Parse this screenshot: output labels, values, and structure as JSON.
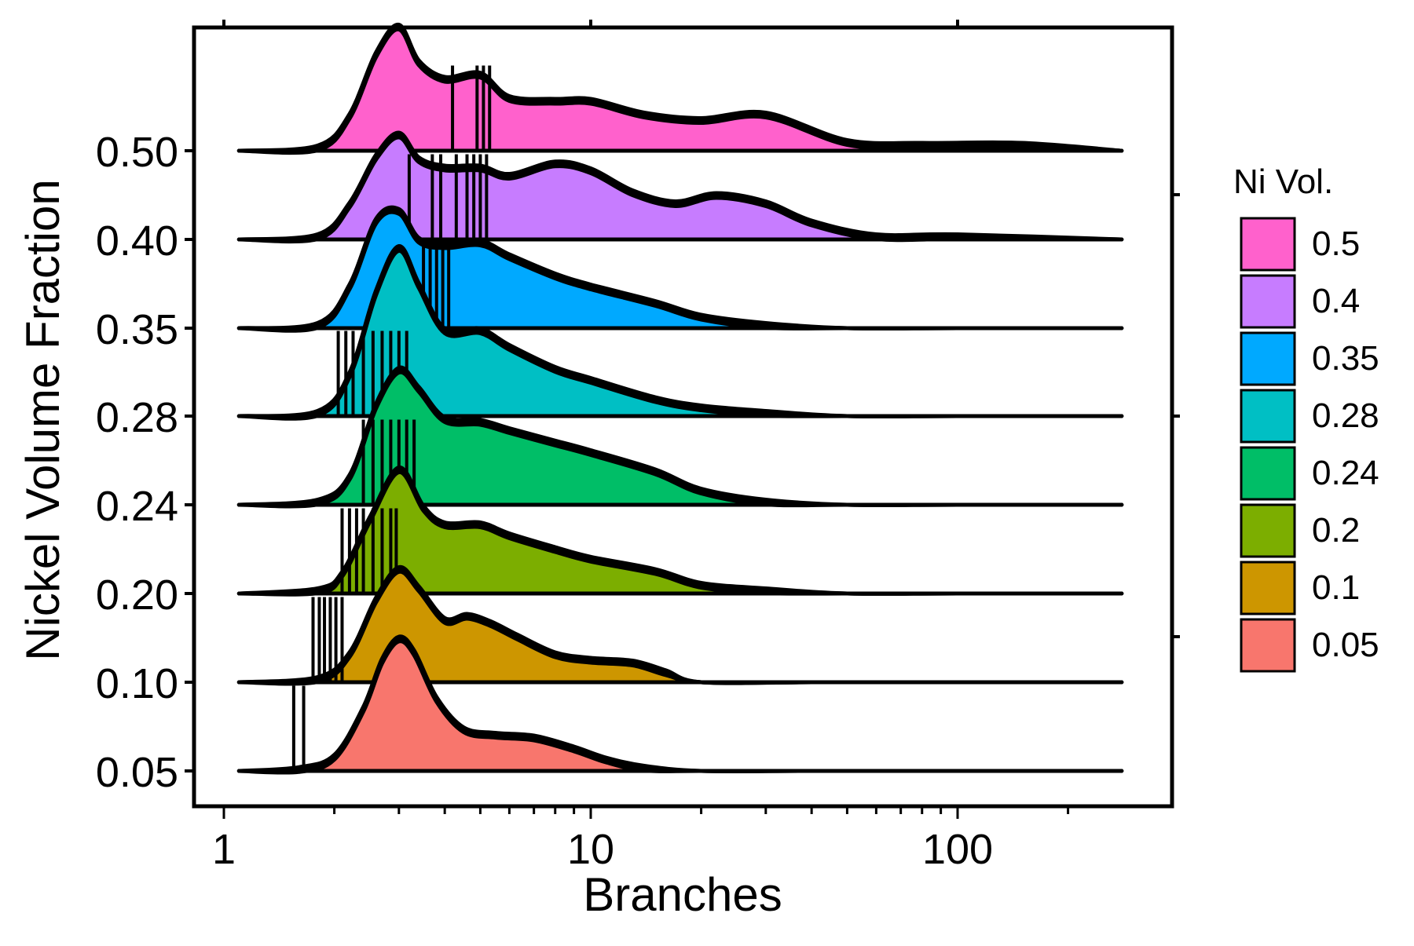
{
  "chart_data": {
    "type": "area",
    "subtype": "ridgeline-density",
    "title": "",
    "xlabel": "Branches",
    "ylabel": "Nickel Volume Fraction",
    "x_scale": "log10",
    "xlim": [
      1,
      280
    ],
    "x_ticks": [
      "1",
      "10",
      "100"
    ],
    "y_tick_labels": [
      "0.05",
      "0.10",
      "0.20",
      "0.24",
      "0.28",
      "0.35",
      "0.40",
      "0.50"
    ],
    "grid": false,
    "legend": {
      "title": "Ni Vol.",
      "placement": "right",
      "entries": [
        "0.5",
        "0.4",
        "0.35",
        "0.28",
        "0.24",
        "0.2",
        "0.1",
        "0.05"
      ]
    },
    "series": [
      {
        "name": "0.05",
        "color": "#F8766D",
        "peak_branches": 3,
        "x": [
          1.1,
          1.6,
          2.0,
          2.4,
          2.7,
          3.0,
          3.3,
          3.8,
          4.5,
          5.5,
          7.0,
          9.0,
          11.0,
          14.0,
          20.0,
          40.0,
          100.0,
          280.0
        ],
        "density": [
          0.0,
          0.01,
          0.1,
          0.45,
          0.8,
          0.96,
          0.86,
          0.52,
          0.3,
          0.26,
          0.24,
          0.16,
          0.08,
          0.02,
          0.0,
          0.0,
          0.0,
          0.0
        ],
        "markers": [
          1.55,
          1.65
        ]
      },
      {
        "name": "0.1",
        "color": "#CD9600",
        "peak_branches": 3,
        "x": [
          1.1,
          1.8,
          2.2,
          2.6,
          3.0,
          3.4,
          4.0,
          4.6,
          5.3,
          6.3,
          8.0,
          10.0,
          13.0,
          16.0,
          20.0,
          40.0,
          100.0,
          280.0
        ],
        "density": [
          0.0,
          0.02,
          0.2,
          0.6,
          0.82,
          0.68,
          0.45,
          0.48,
          0.43,
          0.33,
          0.2,
          0.16,
          0.14,
          0.07,
          0.0,
          0.0,
          0.0,
          0.0
        ],
        "markers": [
          1.75,
          1.82,
          1.88,
          1.95,
          2.02,
          2.1
        ]
      },
      {
        "name": "0.2",
        "color": "#7CAE00",
        "peak_branches": 3,
        "x": [
          1.1,
          1.8,
          2.1,
          2.5,
          3.0,
          3.5,
          4.0,
          5.0,
          6.0,
          8.0,
          10.0,
          15.0,
          20.0,
          30.0,
          50.0,
          100.0,
          280.0
        ],
        "density": [
          0.0,
          0.02,
          0.14,
          0.54,
          0.9,
          0.62,
          0.5,
          0.5,
          0.42,
          0.32,
          0.25,
          0.16,
          0.06,
          0.02,
          0.0,
          0.0,
          0.0
        ],
        "markers": [
          2.1,
          2.2,
          2.3,
          2.4,
          2.55,
          2.7,
          2.85,
          2.95
        ]
      },
      {
        "name": "0.24",
        "color": "#00BE67",
        "peak_branches": 3,
        "x": [
          1.1,
          1.8,
          2.2,
          2.6,
          3.0,
          3.4,
          4.0,
          5.0,
          6.0,
          8.0,
          10.0,
          15.0,
          20.0,
          30.0,
          50.0,
          100.0,
          280.0
        ],
        "density": [
          0.0,
          0.02,
          0.2,
          0.72,
          0.98,
          0.84,
          0.62,
          0.6,
          0.54,
          0.45,
          0.38,
          0.24,
          0.1,
          0.02,
          0.0,
          0.0,
          0.0
        ],
        "markers": [
          2.4,
          2.55,
          2.7,
          2.85,
          3.0,
          3.15,
          3.3
        ]
      },
      {
        "name": "0.28",
        "color": "#00BFC4",
        "peak_branches": 3,
        "x": [
          1.1,
          1.8,
          2.2,
          2.6,
          3.0,
          3.4,
          4.0,
          5.0,
          6.0,
          8.0,
          10.0,
          15.0,
          20.0,
          30.0,
          50.0,
          100.0,
          280.0
        ],
        "density": [
          0.0,
          0.02,
          0.3,
          0.9,
          1.22,
          0.95,
          0.62,
          0.62,
          0.5,
          0.34,
          0.26,
          0.12,
          0.06,
          0.02,
          0.0,
          0.0,
          0.0
        ],
        "markers": [
          2.05,
          2.15,
          2.25,
          2.4,
          2.55,
          2.7,
          2.85,
          3.0,
          3.15
        ]
      },
      {
        "name": "0.35",
        "color": "#00A9FF",
        "peak_branches": 3,
        "x": [
          1.1,
          1.8,
          2.2,
          2.6,
          3.0,
          3.4,
          4.0,
          5.0,
          6.0,
          8.0,
          10.0,
          15.0,
          20.0,
          30.0,
          50.0,
          100.0,
          280.0
        ],
        "density": [
          0.0,
          0.02,
          0.3,
          0.78,
          0.85,
          0.64,
          0.6,
          0.62,
          0.52,
          0.38,
          0.3,
          0.18,
          0.08,
          0.02,
          0.0,
          0.0,
          0.0
        ],
        "markers": [
          3.5,
          3.65,
          3.8,
          3.95,
          4.1
        ]
      },
      {
        "name": "0.4",
        "color": "#C77CFF",
        "peak_branches": 3,
        "x": [
          1.1,
          1.8,
          2.2,
          2.6,
          3.0,
          3.4,
          4.0,
          5.0,
          6.0,
          8.0,
          10.0,
          13.0,
          17.0,
          22.0,
          30.0,
          40.0,
          60.0,
          100.0,
          280.0
        ],
        "density": [
          0.0,
          0.02,
          0.25,
          0.6,
          0.76,
          0.58,
          0.52,
          0.52,
          0.46,
          0.55,
          0.5,
          0.34,
          0.26,
          0.32,
          0.26,
          0.12,
          0.02,
          0.02,
          0.0
        ],
        "markers": [
          3.2,
          3.7,
          3.9,
          4.3,
          4.6,
          4.8,
          5.0,
          5.2
        ]
      },
      {
        "name": "0.5",
        "color": "#FF61CC",
        "peak_branches": 3,
        "x": [
          1.1,
          1.8,
          2.2,
          2.6,
          3.0,
          3.4,
          4.0,
          5.0,
          6.0,
          8.0,
          10.0,
          14.0,
          20.0,
          30.0,
          50.0,
          80.0,
          150.0,
          280.0
        ],
        "density": [
          0.0,
          0.02,
          0.25,
          0.7,
          0.9,
          0.64,
          0.52,
          0.55,
          0.38,
          0.36,
          0.36,
          0.26,
          0.22,
          0.26,
          0.06,
          0.04,
          0.04,
          0.0
        ],
        "markers": [
          4.2,
          4.9,
          5.1,
          5.3
        ]
      }
    ]
  }
}
